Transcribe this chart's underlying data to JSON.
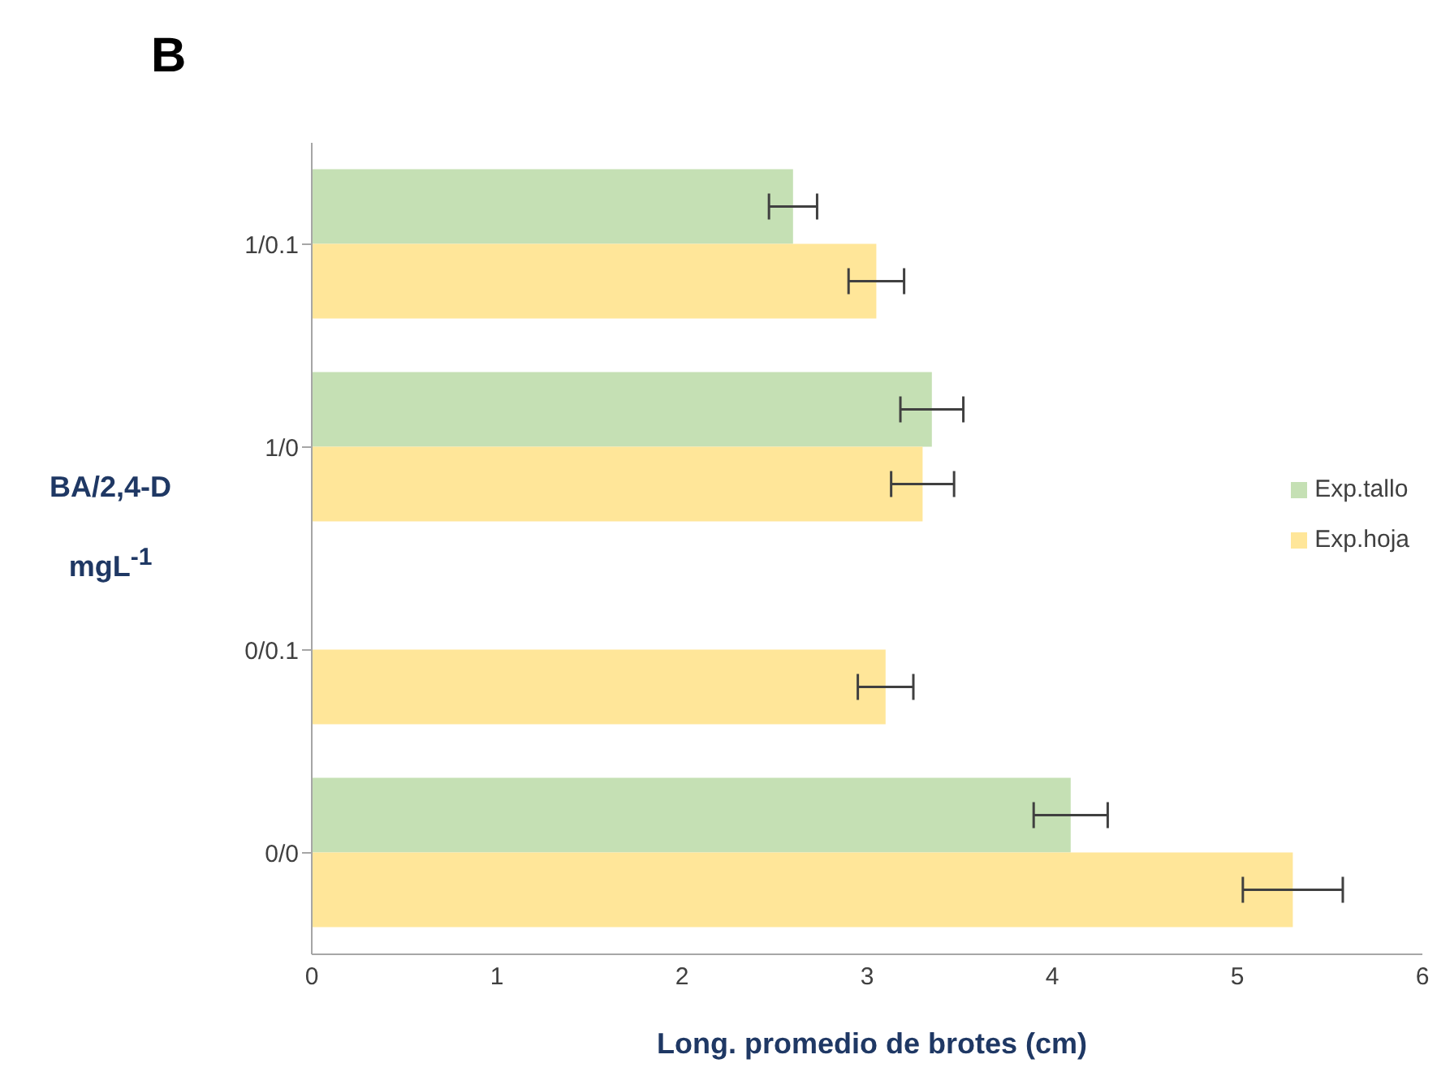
{
  "chart_data": {
    "type": "bar",
    "orientation": "horizontal",
    "title": "B",
    "xlabel": "Long. promedio de brotes (cm)",
    "ylabel": "BA/2,4-D mgL$^{-1}$",
    "categories": [
      "1/0.1",
      "1/0",
      "0/0.1",
      "0/0"
    ],
    "series": [
      {
        "name": "Exp.tallo",
        "color": "#c5e0b4",
        "values": [
          2.6,
          3.35,
          null,
          4.1
        ],
        "errors": [
          0.13,
          0.17,
          null,
          0.2
        ]
      },
      {
        "name": "Exp.hoja",
        "color": "#ffe699",
        "values": [
          3.05,
          3.3,
          3.1,
          5.3
        ],
        "errors": [
          0.15,
          0.17,
          0.15,
          0.27
        ]
      }
    ],
    "xlim": [
      0,
      6
    ],
    "xticks": [
      0,
      1,
      2,
      3,
      4,
      5,
      6
    ],
    "legend": "right",
    "grid": false
  }
}
